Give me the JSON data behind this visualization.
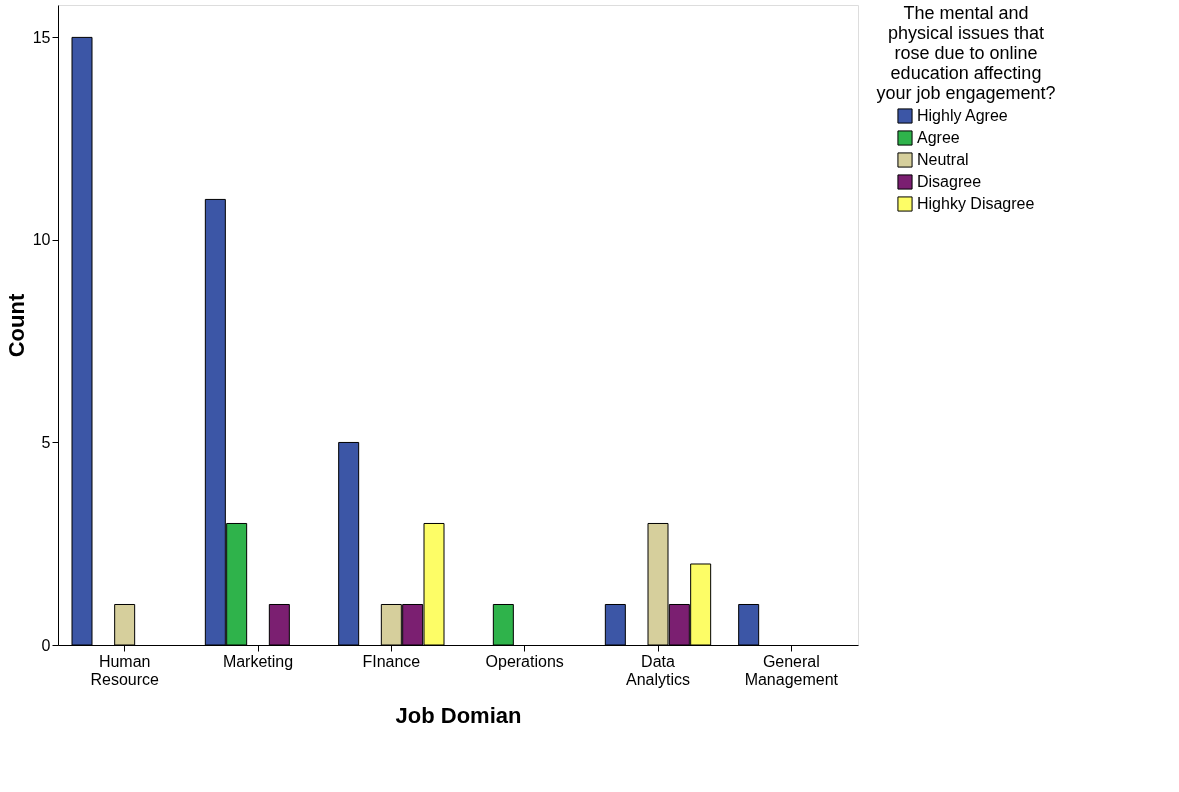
{
  "chart_data": {
    "type": "bar",
    "xlabel": "Job Domian",
    "ylabel": "Count",
    "legend_title": "The mental and physical issues that rose due to online education affecting your job engagement?",
    "categories": [
      "Human Resource",
      "Marketing",
      "FInance",
      "Operations",
      "Data Analytics",
      "General Management"
    ],
    "series": [
      {
        "name": "Highly Agree",
        "color": "#3c56a6",
        "values": [
          15,
          11,
          5,
          null,
          1,
          1
        ]
      },
      {
        "name": "Agree",
        "color": "#2fb34b",
        "values": [
          null,
          3,
          null,
          1,
          null,
          null
        ]
      },
      {
        "name": "Neutral",
        "color": "#d6cf9c",
        "values": [
          1,
          null,
          1,
          null,
          3,
          null
        ]
      },
      {
        "name": "Disagree",
        "color": "#7b1f71",
        "values": [
          null,
          1,
          1,
          null,
          1,
          null
        ]
      },
      {
        "name": "Highky Disagree",
        "color": "#fdfd66",
        "values": [
          null,
          null,
          3,
          null,
          2,
          null
        ]
      }
    ],
    "ylim": [
      0,
      15.8
    ],
    "yticks": [
      0,
      5,
      10,
      15
    ],
    "grid": false,
    "legend": "top right"
  }
}
